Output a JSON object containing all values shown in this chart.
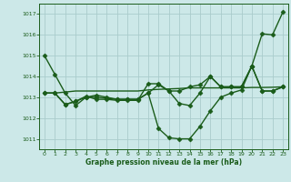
{
  "xlabel": "Graphe pression niveau de la mer (hPa)",
  "background_color": "#cce8e8",
  "grid_color": "#aacccc",
  "line_color": "#1a5c1a",
  "ylim": [
    1010.5,
    1017.5
  ],
  "xlim": [
    -0.5,
    23.5
  ],
  "yticks": [
    1011,
    1012,
    1013,
    1014,
    1015,
    1016,
    1017
  ],
  "xticks": [
    0,
    1,
    2,
    3,
    4,
    5,
    6,
    7,
    8,
    9,
    10,
    11,
    12,
    13,
    14,
    15,
    16,
    17,
    18,
    19,
    20,
    21,
    22,
    23
  ],
  "series": [
    {
      "y": [
        1015.0,
        1014.1,
        1013.2,
        1012.6,
        1013.0,
        1013.1,
        1013.0,
        1012.9,
        1012.9,
        1012.9,
        1013.2,
        1011.5,
        1011.05,
        1011.0,
        1011.0,
        1011.6,
        1012.35,
        1013.0,
        1013.2,
        1013.35,
        1014.5,
        1016.05,
        1016.0,
        1017.1
      ],
      "marker": "D",
      "markersize": 2.5,
      "linewidth": 1.0
    },
    {
      "y": [
        1013.2,
        1013.2,
        1013.25,
        1013.3,
        1013.3,
        1013.3,
        1013.3,
        1013.3,
        1013.3,
        1013.3,
        1013.35,
        1013.38,
        1013.4,
        1013.42,
        1013.45,
        1013.45,
        1013.45,
        1013.45,
        1013.45,
        1013.45,
        1013.47,
        1013.47,
        1013.48,
        1013.5
      ],
      "marker": null,
      "markersize": 0,
      "linewidth": 1.0
    },
    {
      "y": [
        1013.2,
        1013.2,
        1012.65,
        1012.8,
        1013.0,
        1013.0,
        1012.95,
        1012.9,
        1012.9,
        1012.9,
        1013.2,
        1013.6,
        1013.3,
        1013.3,
        1013.5,
        1013.6,
        1014.0,
        1013.5,
        1013.5,
        1013.5,
        1014.5,
        1013.3,
        1013.3,
        1013.5
      ],
      "marker": "D",
      "markersize": 2.5,
      "linewidth": 1.0
    },
    {
      "y": [
        1013.2,
        1013.2,
        1012.65,
        1012.8,
        1013.05,
        1012.9,
        1012.9,
        1012.85,
        1012.85,
        1012.85,
        1013.65,
        1013.65,
        1013.3,
        1012.7,
        1012.6,
        1013.2,
        1014.0,
        1013.5,
        1013.5,
        1013.5,
        1014.5,
        1013.3,
        1013.3,
        1013.5
      ],
      "marker": "D",
      "markersize": 2.5,
      "linewidth": 1.0
    }
  ]
}
